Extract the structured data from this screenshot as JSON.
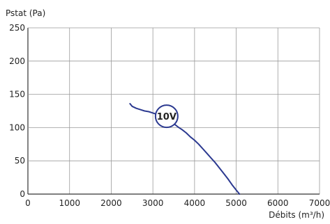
{
  "chart_data": {
    "type": "line",
    "title": "",
    "xlabel": "Débits (m³/h)",
    "ylabel": "Pstat (Pa)",
    "xlim": [
      0,
      7000
    ],
    "ylim": [
      0,
      250
    ],
    "x_ticks": [
      0,
      1000,
      2000,
      3000,
      4000,
      5000,
      6000,
      7000
    ],
    "y_ticks": [
      0,
      50,
      100,
      150,
      200,
      250
    ],
    "grid": true,
    "legend": "none",
    "colors": {
      "curve": "#2b3990",
      "grid": "#9a9a9a",
      "axis": "#333333"
    },
    "series": [
      {
        "label": "10V",
        "label_at": [
          3330,
          117
        ],
        "x": [
          2450,
          2500,
          2600,
          2700,
          2800,
          2900,
          3000,
          3100,
          3200,
          3300,
          3400,
          3500,
          3600,
          3700,
          3800,
          3900,
          4000,
          4100,
          4200,
          4300,
          4400,
          4500,
          4600,
          4700,
          4800,
          4900,
          5000,
          5080
        ],
        "y": [
          136,
          132,
          129,
          127,
          125,
          124,
          122,
          120,
          118,
          114,
          110,
          106,
          101,
          97,
          92,
          86,
          81,
          75,
          68,
          61,
          54,
          47,
          39,
          31,
          23,
          14,
          6,
          0
        ]
      }
    ]
  }
}
